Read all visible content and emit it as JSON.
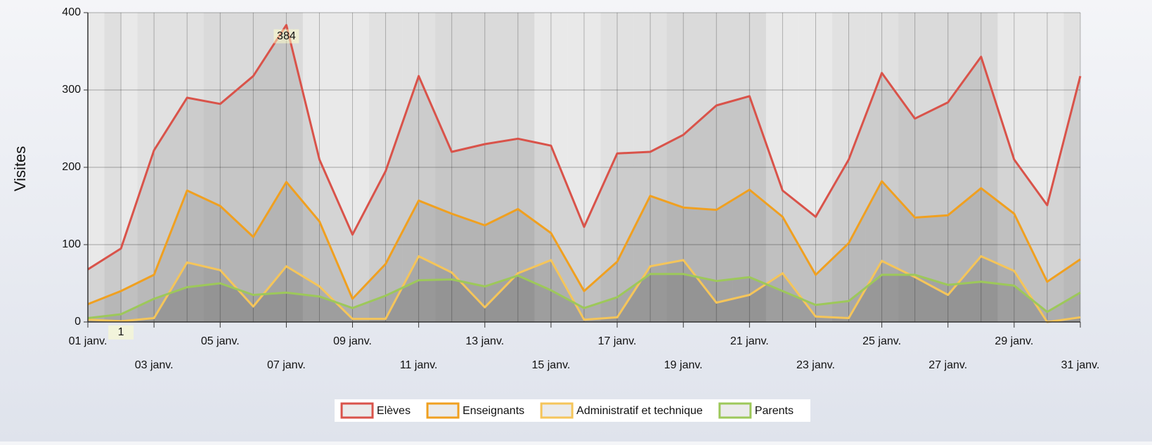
{
  "chart_data": {
    "type": "line",
    "y_label": "Visites",
    "categories": [
      "01 janv.",
      null,
      "03 janv.",
      null,
      "05 janv.",
      null,
      "07 janv.",
      null,
      "09 janv.",
      null,
      "11 janv.",
      null,
      "13 janv.",
      null,
      "15 janv.",
      null,
      "17 janv.",
      null,
      "19 janv.",
      null,
      "21 janv.",
      null,
      "23 janv.",
      null,
      "25 janv.",
      null,
      "27 janv.",
      null,
      "29 janv.",
      null,
      "31 janv."
    ],
    "series": [
      {
        "name": "Elèves",
        "color": "#d9534a",
        "values": [
          68,
          95,
          222,
          290,
          282,
          318,
          384,
          210,
          113,
          195,
          318,
          220,
          230,
          237,
          228,
          123,
          218,
          220,
          242,
          280,
          292,
          170,
          136,
          210,
          322,
          263,
          284,
          343,
          210,
          151,
          318
        ]
      },
      {
        "name": "Enseignants",
        "color": "#f0a020",
        "values": [
          23,
          40,
          61,
          170,
          150,
          110,
          181,
          130,
          30,
          75,
          157,
          140,
          125,
          146,
          115,
          40,
          78,
          163,
          148,
          145,
          171,
          136,
          61,
          102,
          182,
          135,
          138,
          173,
          140,
          52,
          81
        ]
      },
      {
        "name": "Administratif et technique",
        "color": "#f5c55a",
        "values": [
          3,
          1,
          5,
          77,
          67,
          20,
          72,
          46,
          4,
          4,
          85,
          64,
          19,
          63,
          80,
          3,
          6,
          72,
          80,
          25,
          35,
          63,
          7,
          5,
          79,
          58,
          35,
          85,
          66,
          0,
          6
        ]
      },
      {
        "name": "Parents",
        "color": "#9dc85a",
        "values": [
          5,
          10,
          30,
          45,
          50,
          35,
          38,
          33,
          18,
          34,
          54,
          55,
          46,
          60,
          41,
          18,
          32,
          62,
          62,
          53,
          58,
          40,
          22,
          27,
          61,
          61,
          48,
          52,
          47,
          13,
          38
        ]
      }
    ],
    "annotations": [
      {
        "text": "384",
        "series": 0,
        "point": 6
      },
      {
        "text": "1",
        "series": 2,
        "point": 1
      }
    ],
    "ylim": [
      0,
      400
    ],
    "yticks": [
      0,
      100,
      200,
      300,
      400
    ],
    "grid": true,
    "legend": "bottom"
  }
}
